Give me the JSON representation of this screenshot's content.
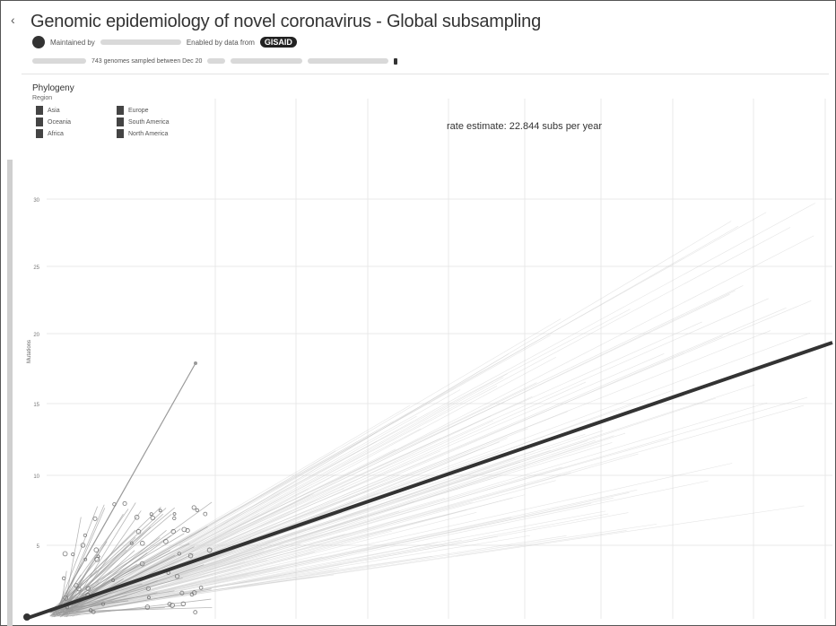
{
  "header": {
    "collapse_icon": "chevron-left-icon",
    "title": "Genomic epidemiology of novel coronavirus - Global subsampling",
    "maintained_by": "Maintained by",
    "enabled_by": "Enabled by data from",
    "gisaid": "GISAID",
    "sampling_text": "743 genomes sampled between Dec 20",
    "logo_icon": "nextstrain-logo-icon",
    "pin_icon": "info-icon"
  },
  "panel": {
    "title": "Phylogeny",
    "region_label": "Region"
  },
  "legend": {
    "items": [
      {
        "label": "Asia"
      },
      {
        "label": "Europe"
      },
      {
        "label": "Oceania"
      },
      {
        "label": "South America"
      },
      {
        "label": "Africa"
      },
      {
        "label": "North America"
      }
    ]
  },
  "rate_text": "rate estimate: 22.844 subs per year",
  "colors": {
    "background": "#ffffff",
    "grid": "#e8e8e8",
    "fan": "#cfcfcf",
    "branch": "#9a9a9a",
    "regression": "#333333"
  },
  "chart_data": {
    "type": "scatter",
    "title": "",
    "xlabel": "",
    "ylabel": "Mutations",
    "y_ticks": [
      "5",
      "10",
      "15",
      "20",
      "25",
      "30"
    ],
    "x_ticks": [],
    "regression": {
      "rate": 22.844,
      "unit": "subs per year"
    }
  }
}
